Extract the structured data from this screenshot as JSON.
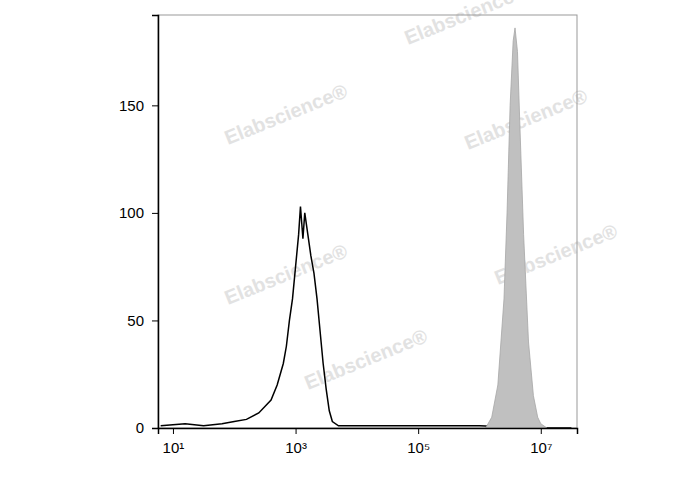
{
  "chart_data": {
    "type": "line",
    "watermark": "Elabscience®",
    "log": "x",
    "xlim": [
      5.7,
      39000000
    ],
    "xticks": [
      {
        "value": 10,
        "label": "10¹"
      },
      {
        "value": 1000,
        "label": "10³"
      },
      {
        "value": 100000,
        "label": "10⁵"
      },
      {
        "value": 10000000,
        "label": "10⁷"
      }
    ],
    "ylim": [
      0,
      192
    ],
    "yticks": [
      0,
      50,
      100,
      150
    ],
    "series": [
      {
        "type": "line",
        "color": "#000000",
        "x": [
          6.3,
          15.8,
          31.6,
          63.1,
          100,
          158,
          251,
          316,
          398,
          501,
          631,
          708,
          794,
          891,
          1000,
          1122,
          1202,
          1318,
          1413,
          1585,
          1778,
          1995,
          2239,
          2512,
          2818,
          3162,
          3548,
          3981,
          5012,
          10000,
          100000,
          1000000,
          10000000,
          31622777
        ],
        "values": [
          1,
          2,
          1,
          2,
          3,
          4,
          7,
          10,
          13,
          20,
          30,
          38,
          50,
          60,
          75,
          90,
          103,
          88,
          100,
          90,
          80,
          72,
          60,
          45,
          30,
          18,
          8,
          3,
          1,
          1,
          1,
          1,
          0,
          0
        ]
      },
      {
        "type": "area",
        "color": "#c0c0c0",
        "x": [
          1258925,
          1584893,
          1995262,
          2511886,
          2818383,
          3162278,
          3548134,
          3801894,
          4168694,
          4570882,
          5248075,
          6309573,
          7585776,
          8912509,
          10000000,
          12589254
        ],
        "values": [
          0,
          5,
          20,
          60,
          100,
          150,
          180,
          186,
          175,
          140,
          90,
          40,
          15,
          5,
          2,
          0
        ]
      }
    ]
  }
}
